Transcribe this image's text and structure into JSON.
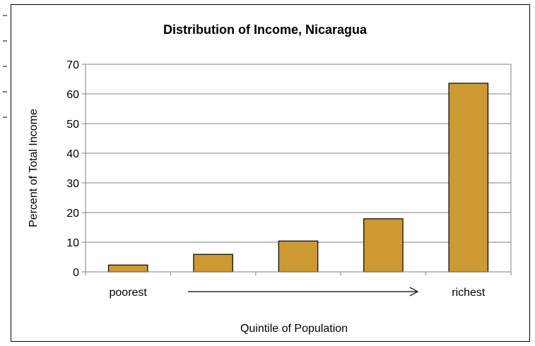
{
  "chart_data": {
    "type": "bar",
    "title": "Distribution of Income, Nicaragua",
    "xlabel": "Quintile of Population",
    "ylabel": "Percent of Total Income",
    "categories": [
      "poorest",
      "",
      "",
      "",
      "richest"
    ],
    "values": [
      2.3,
      5.9,
      10.4,
      17.9,
      63.6
    ],
    "ylim": [
      0,
      70
    ],
    "yticks": [
      0,
      10,
      20,
      30,
      40,
      50,
      60,
      70
    ],
    "grid": true,
    "bar_color": "#cc9933",
    "axis_color": "#808080",
    "grid_color": "#808080"
  }
}
